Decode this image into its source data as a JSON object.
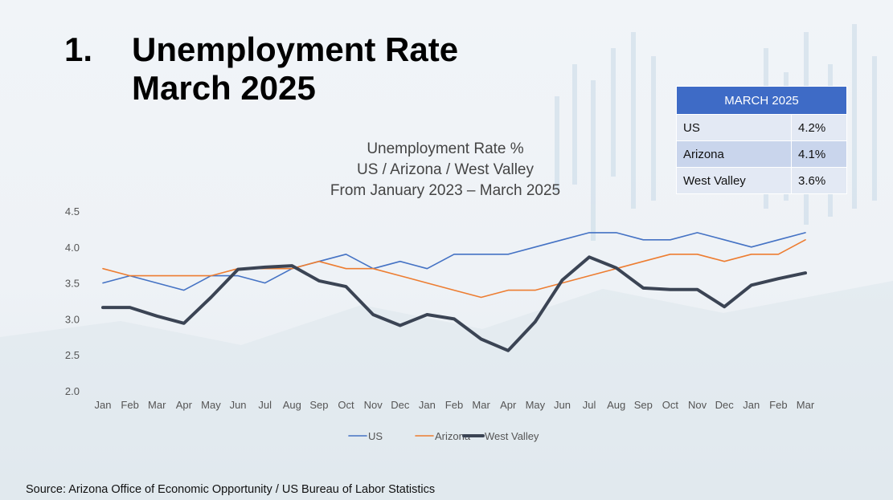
{
  "slide": {
    "number": "1.",
    "title_line1": "Unemployment Rate",
    "title_line2": "March 2025",
    "source": "Source: Arizona Office of Economic Opportunity / US Bureau of Labor Statistics"
  },
  "summary_table": {
    "header": "MARCH 2025",
    "rows": [
      {
        "label": "US",
        "value": "4.2%"
      },
      {
        "label": "Arizona",
        "value": "4.1%"
      },
      {
        "label": "West Valley",
        "value": "3.6%"
      }
    ]
  },
  "chart_data": {
    "type": "line",
    "title_lines": [
      "Unemployment Rate %",
      "US / Arizona / West Valley",
      "From January 2023 – March 2025"
    ],
    "categories": [
      "Jan",
      "Feb",
      "Mar",
      "Apr",
      "May",
      "Jun",
      "Jul",
      "Aug",
      "Sep",
      "Oct",
      "Nov",
      "Dec",
      "Jan",
      "Feb",
      "Mar",
      "Apr",
      "May",
      "Jun",
      "Jul",
      "Aug",
      "Sep",
      "Oct",
      "Nov",
      "Dec",
      "Jan",
      "Feb",
      "Mar"
    ],
    "ylim": [
      2.0,
      4.5
    ],
    "yticks": [
      "2.0",
      "2.5",
      "3.0",
      "3.5",
      "4.0",
      "4.5"
    ],
    "grid": false,
    "legend": "bottom",
    "series": [
      {
        "name": "US",
        "color": "#4472c4",
        "values": [
          3.5,
          3.6,
          3.5,
          3.4,
          3.6,
          3.6,
          3.5,
          3.7,
          3.8,
          3.9,
          3.7,
          3.8,
          3.7,
          3.9,
          3.9,
          3.9,
          4.0,
          4.1,
          4.2,
          4.2,
          4.1,
          4.1,
          4.2,
          4.1,
          4.0,
          4.1,
          4.2
        ]
      },
      {
        "name": "Arizona",
        "color": "#ed7d31",
        "values": [
          3.7,
          3.6,
          3.6,
          3.6,
          3.6,
          3.7,
          3.7,
          3.7,
          3.8,
          3.7,
          3.7,
          3.6,
          3.5,
          3.4,
          3.3,
          3.4,
          3.4,
          3.5,
          3.6,
          3.7,
          3.8,
          3.9,
          3.9,
          3.8,
          3.9,
          3.9,
          4.1
        ]
      },
      {
        "name": "West Valley",
        "color": "#3b4454",
        "values": [
          3.16,
          3.16,
          3.04,
          2.94,
          3.3,
          3.69,
          3.72,
          3.74,
          3.53,
          3.45,
          3.06,
          2.91,
          3.06,
          3.0,
          2.72,
          2.56,
          2.96,
          3.54,
          3.86,
          3.71,
          3.43,
          3.41,
          3.41,
          3.17,
          3.47,
          3.56,
          3.64
        ]
      }
    ]
  }
}
